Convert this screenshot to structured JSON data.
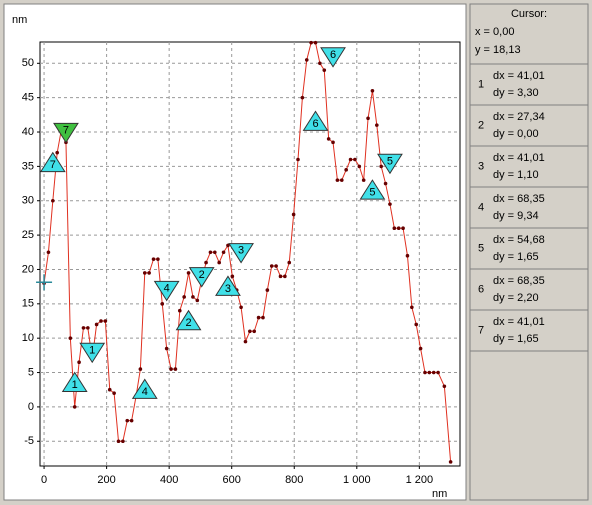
{
  "chart_data": {
    "type": "line",
    "x_unit": "nm",
    "y_unit": "nm",
    "x": [
      0,
      14,
      28,
      42,
      56,
      70,
      84,
      98,
      112,
      126,
      140,
      154,
      168,
      182,
      196,
      210,
      224,
      238,
      252,
      266,
      280,
      294,
      308,
      322,
      336,
      350,
      364,
      378,
      392,
      406,
      420,
      434,
      448,
      462,
      476,
      490,
      504,
      518,
      532,
      546,
      560,
      574,
      588,
      602,
      616,
      630,
      644,
      658,
      672,
      686,
      700,
      714,
      728,
      742,
      756,
      770,
      784,
      798,
      812,
      826,
      840,
      854,
      868,
      882,
      896,
      910,
      924,
      938,
      952,
      966,
      980,
      994,
      1008,
      1022,
      1036,
      1050,
      1064,
      1078,
      1092,
      1106,
      1120,
      1134,
      1148,
      1162,
      1176,
      1190,
      1204,
      1218,
      1232,
      1246,
      1260,
      1280,
      1300
    ],
    "values": [
      18,
      22.5,
      30,
      37,
      40.5,
      38.5,
      10,
      0,
      6.5,
      11.5,
      11.5,
      7,
      12,
      12.5,
      12.5,
      2.5,
      2,
      -5,
      -5,
      -2,
      -2,
      1.5,
      5.5,
      19.5,
      19.5,
      21.5,
      21.5,
      15,
      8.5,
      5.5,
      5.5,
      14,
      16,
      19.5,
      16,
      15.5,
      18.5,
      21,
      22.5,
      22.5,
      21,
      22.5,
      23.5,
      19,
      17,
      14.5,
      9.5,
      11,
      11,
      13,
      13,
      17,
      20.5,
      20.5,
      19,
      19,
      21,
      28,
      36,
      45,
      50.5,
      53,
      53,
      50,
      49,
      39,
      38.5,
      33,
      33,
      34.5,
      36,
      36,
      35,
      33,
      42,
      46,
      41,
      35,
      32.5,
      29.5,
      26,
      26,
      26,
      22,
      14.5,
      12,
      8.5,
      5,
      5,
      5,
      5,
      3,
      -8
    ],
    "color": "#e03020",
    "xlim": [
      -13,
      1330
    ],
    "ylim": [
      -8.6,
      53.1
    ],
    "xticks": [
      0,
      200,
      400,
      600,
      800,
      {
        "value": 1000,
        "label": "1 000"
      },
      {
        "value": 1200,
        "label": "1 200"
      }
    ],
    "yticks": [
      -5,
      0,
      5,
      10,
      15,
      20,
      25,
      30,
      35,
      40,
      45,
      50
    ],
    "grid": true,
    "cursor": {
      "x": 0,
      "y": 18.13
    },
    "markers": [
      {
        "label": "7",
        "x": 28,
        "y": 37,
        "dir": "up",
        "color": "#40e0e8"
      },
      {
        "label": "7",
        "x": 70,
        "y": 38.5,
        "dir": "down",
        "color": "#40c040"
      },
      {
        "label": "1",
        "x": 98,
        "y": 5,
        "dir": "up",
        "color": "#40e0e8"
      },
      {
        "label": "1",
        "x": 154,
        "y": 6.5,
        "dir": "down",
        "color": "#40e0e8"
      },
      {
        "label": "4",
        "x": 322,
        "y": 4,
        "dir": "up",
        "color": "#40e0e8"
      },
      {
        "label": "4",
        "x": 392,
        "y": 15.5,
        "dir": "down",
        "color": "#40e0e8"
      },
      {
        "label": "2",
        "x": 462,
        "y": 14,
        "dir": "up",
        "color": "#40e0e8"
      },
      {
        "label": "2",
        "x": 504,
        "y": 17.5,
        "dir": "down",
        "color": "#40e0e8"
      },
      {
        "label": "3",
        "x": 588,
        "y": 19,
        "dir": "up",
        "color": "#40e0e8"
      },
      {
        "label": "3",
        "x": 630,
        "y": 21,
        "dir": "down",
        "color": "#40e0e8"
      },
      {
        "label": "6",
        "x": 868,
        "y": 43,
        "dir": "up",
        "color": "#40e0e8"
      },
      {
        "label": "6",
        "x": 924,
        "y": 49.5,
        "dir": "down",
        "color": "#40e0e8"
      },
      {
        "label": "5",
        "x": 1050,
        "y": 33,
        "dir": "up",
        "color": "#40e0e8"
      },
      {
        "label": "5",
        "x": 1106,
        "y": 34,
        "dir": "down",
        "color": "#40e0e8"
      }
    ]
  },
  "cursor_panel": {
    "title": "Cursor:",
    "x": "x = 0,00",
    "y": "y = 18,13",
    "rows": [
      {
        "id": "1",
        "dx": "dx = 41,01",
        "dy": "dy = 3,30"
      },
      {
        "id": "2",
        "dx": "dx = 27,34",
        "dy": "dy = 0,00"
      },
      {
        "id": "3",
        "dx": "dx = 41,01",
        "dy": "dy = 1,10"
      },
      {
        "id": "4",
        "dx": "dx = 68,35",
        "dy": "dy = 9,34"
      },
      {
        "id": "5",
        "dx": "dx = 54,68",
        "dy": "dy = 1,65"
      },
      {
        "id": "6",
        "dx": "dx = 68,35",
        "dy": "dy = 2,20"
      },
      {
        "id": "7",
        "dx": "dx = 41,01",
        "dy": "dy = 1,65"
      }
    ]
  }
}
